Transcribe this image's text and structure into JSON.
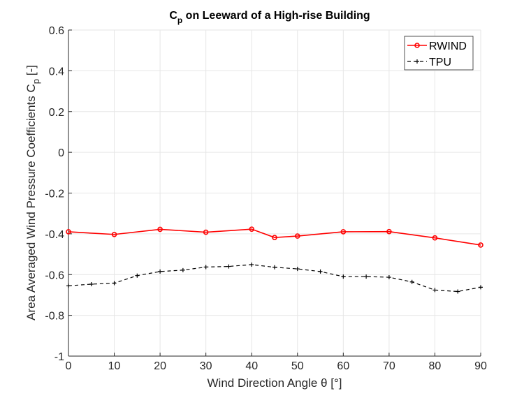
{
  "chart_data": {
    "type": "line",
    "title": "C",
    "title_subscript": "p",
    "title_rest": " on Leeward of a High-rise Building",
    "xlabel": "Wind Direction Angle θ [°]",
    "ylabel": "Area Averaged Wind Pressure Coefficients C",
    "ylabel_subscript": "p",
    "ylabel_rest": " [-]",
    "xlim": [
      0,
      90
    ],
    "ylim": [
      -1,
      0.6
    ],
    "x_ticks": [
      0,
      10,
      20,
      30,
      40,
      50,
      60,
      70,
      80,
      90
    ],
    "y_ticks": [
      -1,
      -0.8,
      -0.6,
      -0.4,
      -0.2,
      0,
      0.2,
      0.4,
      0.6
    ],
    "x_tick_labels": [
      "0",
      "10",
      "20",
      "30",
      "40",
      "50",
      "60",
      "70",
      "80",
      "90"
    ],
    "y_tick_labels": [
      "-1",
      "-0.8",
      "-0.6",
      "-0.4",
      "-0.2",
      "0",
      "0.2",
      "0.4",
      "0.6"
    ],
    "grid": true,
    "legend_position": "top-right",
    "series": [
      {
        "name": "RWIND",
        "color": "#ff0000",
        "line_style": "solid",
        "marker": "circle",
        "x": [
          0,
          10,
          20,
          30,
          40,
          45,
          50,
          60,
          70,
          80,
          90
        ],
        "y": [
          -0.39,
          -0.403,
          -0.378,
          -0.392,
          -0.377,
          -0.418,
          -0.411,
          -0.39,
          -0.389,
          -0.42,
          -0.455
        ]
      },
      {
        "name": "TPU",
        "color": "#000000",
        "line_style": "dashed",
        "marker": "plus",
        "x": [
          0,
          5,
          10,
          15,
          20,
          25,
          30,
          35,
          40,
          45,
          50,
          55,
          60,
          65,
          70,
          75,
          80,
          85,
          90
        ],
        "y": [
          -0.655,
          -0.647,
          -0.642,
          -0.605,
          -0.585,
          -0.578,
          -0.563,
          -0.56,
          -0.551,
          -0.564,
          -0.572,
          -0.585,
          -0.61,
          -0.61,
          -0.613,
          -0.636,
          -0.676,
          -0.683,
          -0.662
        ]
      }
    ]
  }
}
